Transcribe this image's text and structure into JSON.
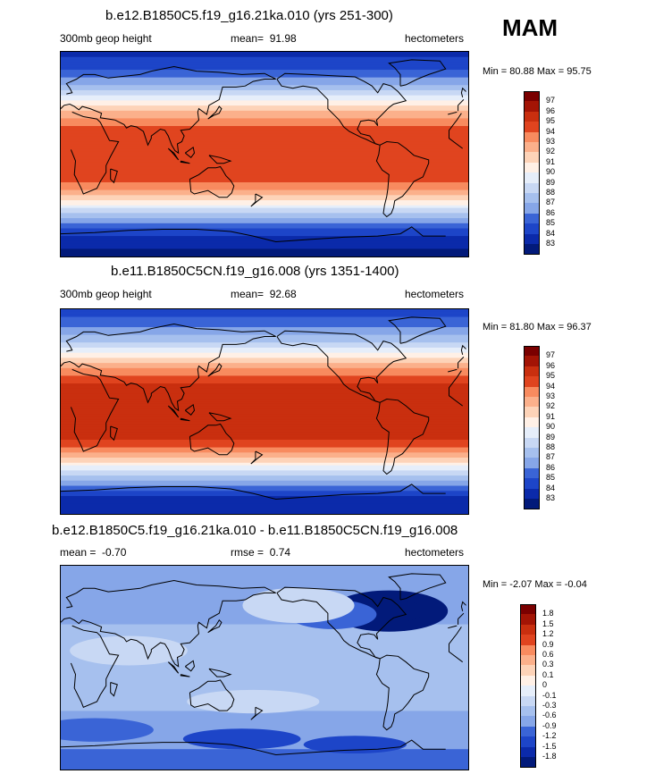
{
  "season": "MAM",
  "colors": {
    "warm": [
      "#fff0e6",
      "#fdd3b8",
      "#fbb08b",
      "#f88b5f",
      "#f0643a",
      "#e0441f",
      "#c92f0f",
      "#a31405",
      "#7a0000"
    ],
    "cool": [
      "#e6eefa",
      "#c8d8f4",
      "#a6c0ee",
      "#86a6e8",
      "#5e86dd",
      "#3a64d6",
      "#1d45c8",
      "#0b2aaa",
      "#021a7a"
    ],
    "land_line": "#000000"
  },
  "chart_data": [
    {
      "type": "heatmap",
      "title": "b.e12.B1850C5.f19_g16.21ka.010 (yrs 251-300)",
      "left_label": "300mb geop height",
      "mean_label": "mean=",
      "mean_value": "91.98",
      "units": "hectometers",
      "min_label": "Min =",
      "min_value": "80.88",
      "max_label": "Max =",
      "max_value": "95.75",
      "levels": [
        "83",
        "84",
        "85",
        "86",
        "87",
        "88",
        "89",
        "90",
        "91",
        "92",
        "93",
        "94",
        "95",
        "96",
        "97"
      ],
      "zonal_profile": {
        "lat": [
          90,
          75,
          60,
          50,
          40,
          30,
          20,
          10,
          0,
          -10,
          -20,
          -30,
          -40,
          -50,
          -60,
          -75,
          -90
        ],
        "value": [
          83.5,
          85,
          87,
          89.5,
          91.5,
          93.5,
          94.5,
          94.8,
          94.9,
          94.8,
          94.5,
          93.5,
          91,
          88.5,
          86,
          83.5,
          82.5
        ]
      }
    },
    {
      "type": "heatmap",
      "title": "b.e11.B1850C5CN.f19_g16.008 (yrs 1351-1400)",
      "left_label": "300mb geop height",
      "mean_label": "mean=",
      "mean_value": "92.68",
      "units": "hectometers",
      "min_label": "Min =",
      "min_value": "81.80",
      "max_label": "Max =",
      "max_value": "96.37",
      "levels": [
        "83",
        "84",
        "85",
        "86",
        "87",
        "88",
        "89",
        "90",
        "91",
        "92",
        "93",
        "94",
        "95",
        "96",
        "97"
      ],
      "zonal_profile": {
        "lat": [
          90,
          75,
          60,
          50,
          40,
          30,
          20,
          10,
          0,
          -10,
          -20,
          -30,
          -40,
          -50,
          -60,
          -75,
          -90
        ],
        "value": [
          84,
          86,
          88,
          90.5,
          92.5,
          94.5,
          95.4,
          95.6,
          95.7,
          95.6,
          95.4,
          94.5,
          92,
          89.5,
          87,
          84,
          83
        ]
      }
    },
    {
      "type": "heatmap",
      "title": "b.e12.B1850C5.f19_g16.21ka.010 - b.e11.B1850C5CN.f19_g16.008",
      "left_label": "mean =",
      "left_value": "-0.70",
      "rmse_label": "rmse =",
      "rmse_value": "0.74",
      "units": "hectometers",
      "min_label": "Min =",
      "min_value": "-2.07",
      "max_label": "Max =",
      "max_value": "-0.04",
      "levels": [
        "-1.8",
        "-1.5",
        "-1.2",
        "-0.9",
        "-0.6",
        "-0.3",
        "-0.1",
        "0",
        "0.1",
        "0.3",
        "0.6",
        "0.9",
        "1.2",
        "1.5",
        "1.8"
      ],
      "zonal_profile": {
        "lat": [
          90,
          60,
          30,
          0,
          -30,
          -60,
          -90
        ],
        "value": [
          -0.6,
          -0.9,
          -0.5,
          -0.6,
          -0.55,
          -0.75,
          -1.1
        ]
      }
    }
  ]
}
